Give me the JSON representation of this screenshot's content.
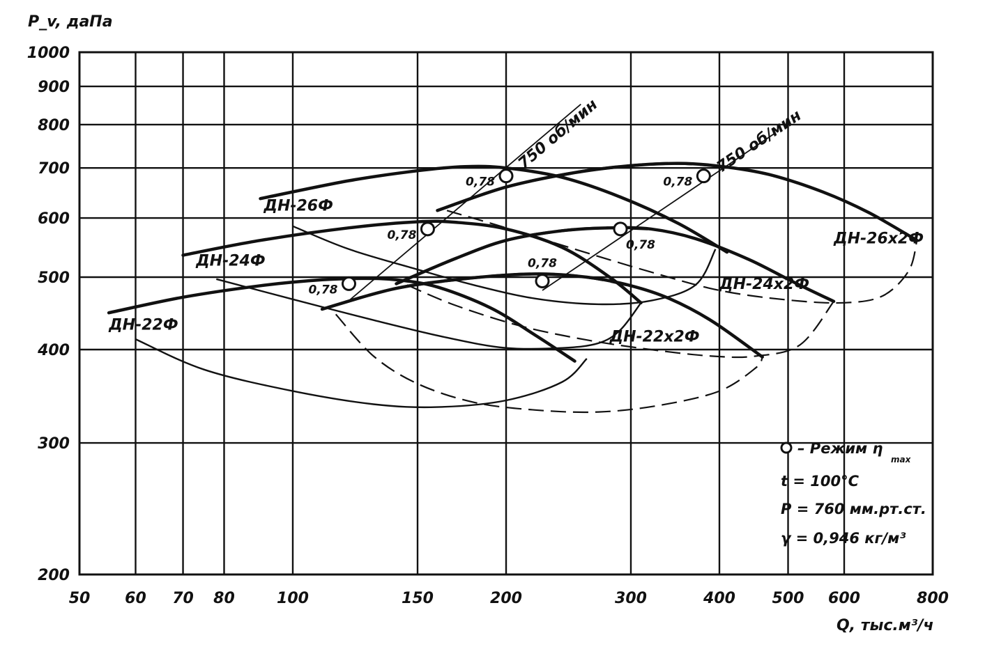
{
  "chart_data": {
    "type": "line",
    "x_scale": "log",
    "y_scale": "log",
    "xlim": [
      50,
      800
    ],
    "ylim": [
      200,
      1000
    ],
    "ylabel": "P_v, даПа",
    "xlabel": "Q, тыс.м³/ч",
    "x_ticks": [
      "50",
      "60",
      "70",
      "80",
      "100",
      "150",
      "200",
      "300",
      "400",
      "500",
      "600",
      "800"
    ],
    "x_tick_values": [
      50,
      60,
      70,
      80,
      100,
      150,
      200,
      300,
      400,
      500,
      600,
      800
    ],
    "y_ticks": [
      "1000",
      "900",
      "800",
      "700",
      "600",
      "500",
      "400",
      "300",
      "200"
    ],
    "y_tick_values": [
      1000,
      900,
      800,
      700,
      600,
      500,
      400,
      300,
      200
    ],
    "grid": true,
    "fans": [
      {
        "label": "ДН-22Ф",
        "label_at": [
          55,
          425
        ],
        "style": "solid",
        "pressure_curve": [
          [
            55,
            448
          ],
          [
            70,
            470
          ],
          [
            90,
            487
          ],
          [
            110,
            496
          ],
          [
            125,
            498
          ],
          [
            140,
            496
          ],
          [
            160,
            485
          ],
          [
            190,
            455
          ],
          [
            220,
            418
          ],
          [
            250,
            386
          ]
        ],
        "loop_lower": [
          [
            60,
            413
          ],
          [
            75,
            376
          ],
          [
            100,
            352
          ],
          [
            130,
            338
          ],
          [
            160,
            335
          ],
          [
            200,
            342
          ],
          [
            240,
            362
          ],
          [
            260,
            389
          ]
        ],
        "loop_upper": null
      },
      {
        "label": "ДН-24Ф",
        "label_at": [
          73,
          518
        ],
        "style": "solid",
        "pressure_curve": [
          [
            70,
            535
          ],
          [
            90,
            560
          ],
          [
            120,
            582
          ],
          [
            150,
            593
          ],
          [
            170,
            592
          ],
          [
            200,
            580
          ],
          [
            240,
            548
          ],
          [
            280,
            500
          ],
          [
            310,
            462
          ]
        ],
        "loop_lower": [
          [
            78,
            497
          ],
          [
            100,
            467
          ],
          [
            130,
            438
          ],
          [
            165,
            415
          ],
          [
            200,
            402
          ],
          [
            240,
            402
          ],
          [
            270,
            408
          ],
          [
            290,
            425
          ],
          [
            310,
            462
          ]
        ],
        "loop_upper": null
      },
      {
        "label": "ДН-26Ф",
        "label_at": [
          91,
          614
        ],
        "style": "solid",
        "pressure_curve": [
          [
            90,
            637
          ],
          [
            120,
            673
          ],
          [
            150,
            694
          ],
          [
            175,
            703
          ],
          [
            200,
            700
          ],
          [
            240,
            680
          ],
          [
            290,
            640
          ],
          [
            350,
            590
          ],
          [
            410,
            540
          ]
        ],
        "loop_lower": [
          [
            100,
            585
          ],
          [
            120,
            545
          ],
          [
            150,
            512
          ],
          [
            180,
            488
          ],
          [
            220,
            468
          ],
          [
            270,
            460
          ],
          [
            320,
            465
          ],
          [
            370,
            488
          ],
          [
            395,
            545
          ]
        ],
        "loop_upper": null
      },
      {
        "label": "ДН-22х2Ф",
        "label_at": [
          280,
          410
        ],
        "style": "mixed",
        "pressure_curve": [
          [
            110,
            453
          ],
          [
            140,
            483
          ],
          [
            180,
            499
          ],
          [
            220,
            505
          ],
          [
            260,
            500
          ],
          [
            300,
            487
          ],
          [
            340,
            468
          ],
          [
            390,
            437
          ],
          [
            460,
            391
          ]
        ],
        "loop_lower": [
          [
            115,
            446
          ],
          [
            130,
            392
          ],
          [
            150,
            360
          ],
          [
            180,
            340
          ],
          [
            220,
            332
          ],
          [
            270,
            330
          ],
          [
            330,
            337
          ],
          [
            400,
            352
          ],
          [
            450,
            378
          ],
          [
            460,
            391
          ]
        ],
        "loop_upper": null
      },
      {
        "label": "ДН-24х2Ф",
        "label_at": [
          400,
          482
        ],
        "style": "mixed",
        "pressure_curve": [
          [
            140,
            490
          ],
          [
            170,
            530
          ],
          [
            200,
            560
          ],
          [
            240,
            577
          ],
          [
            280,
            582
          ],
          [
            320,
            580
          ],
          [
            370,
            563
          ],
          [
            440,
            528
          ],
          [
            510,
            492
          ],
          [
            580,
            464
          ]
        ],
        "loop_lower": [
          [
            145,
            488
          ],
          [
            170,
            458
          ],
          [
            210,
            430
          ],
          [
            260,
            412
          ],
          [
            320,
            400
          ],
          [
            390,
            392
          ],
          [
            450,
            392
          ],
          [
            520,
            406
          ],
          [
            580,
            464
          ]
        ],
        "loop_upper": null
      },
      {
        "label": "ДН-26х2Ф",
        "label_at": [
          580,
          555
        ],
        "style": "mixed",
        "pressure_curve": [
          [
            160,
            614
          ],
          [
            200,
            660
          ],
          [
            250,
            690
          ],
          [
            300,
            705
          ],
          [
            350,
            710
          ],
          [
            400,
            704
          ],
          [
            470,
            686
          ],
          [
            560,
            650
          ],
          [
            650,
            610
          ],
          [
            760,
            560
          ]
        ],
        "loop_lower": [
          [
            165,
            614
          ],
          [
            200,
            582
          ],
          [
            250,
            545
          ],
          [
            320,
            508
          ],
          [
            400,
            480
          ],
          [
            500,
            466
          ],
          [
            600,
            462
          ],
          [
            680,
            472
          ],
          [
            740,
            510
          ],
          [
            760,
            560
          ]
        ],
        "loop_upper": null
      }
    ],
    "rpm_lines": [
      {
        "label": "750 об/мин",
        "points": [
          [
            120,
            465
          ],
          [
            155,
            565
          ],
          [
            200,
            682
          ],
          [
            255,
            852
          ]
        ]
      },
      {
        "label": "750 об/мин",
        "points": [
          [
            225,
            480
          ],
          [
            290,
            570
          ],
          [
            380,
            675
          ],
          [
            480,
            780
          ]
        ]
      }
    ],
    "efficiency_points": [
      {
        "Q": 120,
        "P": 490,
        "eta": "0,78",
        "label_side": "left"
      },
      {
        "Q": 155,
        "P": 580,
        "eta": "0,78",
        "label_side": "left"
      },
      {
        "Q": 200,
        "P": 683,
        "eta": "0,78",
        "label_side": "left"
      },
      {
        "Q": 225,
        "P": 494,
        "eta": "0,78",
        "label_side": "above"
      },
      {
        "Q": 290,
        "P": 580,
        "eta": "0,78",
        "label_side": "right"
      },
      {
        "Q": 380,
        "P": 683,
        "eta": "0,78",
        "label_side": "left"
      }
    ],
    "legend": {
      "marker_text": "– Режим η",
      "marker_sub": "max",
      "lines": [
        "t = 100°C",
        "P = 760 мм.рт.ст.",
        "γ = 0,946 кг/м³"
      ],
      "placement": "bottom-right"
    }
  }
}
